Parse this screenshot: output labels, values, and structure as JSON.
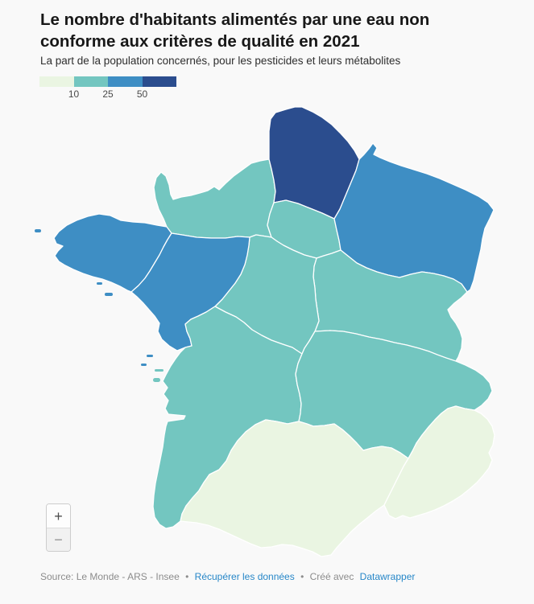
{
  "header": {
    "title": "Le nombre d'habitants alimentés par une eau non conforme aux critères de qualité en 2021",
    "subtitle": "La part de la population concernés, pour les pesticides et leurs métabolites"
  },
  "legend": {
    "ticks": [
      "10",
      "25",
      "50"
    ],
    "colors": [
      "#eaf5e2",
      "#73c6c0",
      "#3e8ec4",
      "#2b4d8e"
    ],
    "tick_color": "#4a4a4a"
  },
  "zoom_controls": {
    "zoom_in": "+",
    "zoom_out": "−"
  },
  "footer": {
    "source": "Source: Le Monde - ARS - Insee",
    "separator": "•",
    "data_link": "Récupérer les données",
    "created_with": "Créé avec",
    "tool_link": "Datawrapper",
    "link_color": "#2787c8",
    "text_color": "#8c8c8c"
  },
  "chart_data": {
    "type": "heatmap",
    "subtype": "choropleth",
    "geography": "France métropolitaine — régions administratives",
    "title": "Le nombre d'habitants alimentés par une eau non conforme aux critères de qualité en 2021",
    "subtitle": "La part de la population concernés, pour les pesticides et leurs métabolites",
    "legend_thresholds": [
      10,
      25,
      50
    ],
    "legend_colors": [
      "#eaf5e2",
      "#73c6c0",
      "#3e8ec4",
      "#2b4d8e"
    ],
    "classes": [
      "< 10",
      "10–25",
      "25–50",
      "> 50"
    ],
    "regions": [
      {
        "key": "hauts-de-france",
        "name": "Hauts-de-France",
        "class": "> 50",
        "bucket_index": 3
      },
      {
        "key": "grand-est",
        "name": "Grand Est",
        "class": "25–50",
        "bucket_index": 2
      },
      {
        "key": "bretagne",
        "name": "Bretagne",
        "class": "25–50",
        "bucket_index": 2
      },
      {
        "key": "pays-de-la-loire",
        "name": "Pays de la Loire",
        "class": "25–50",
        "bucket_index": 2
      },
      {
        "key": "normandie",
        "name": "Normandie",
        "class": "10–25",
        "bucket_index": 1
      },
      {
        "key": "ile-de-france",
        "name": "Île-de-France",
        "class": "10–25",
        "bucket_index": 1
      },
      {
        "key": "centre-val-de-loire",
        "name": "Centre-Val de Loire",
        "class": "10–25",
        "bucket_index": 1
      },
      {
        "key": "bourgogne-franche-comte",
        "name": "Bourgogne-Franche-Comté",
        "class": "10–25",
        "bucket_index": 1
      },
      {
        "key": "nouvelle-aquitaine",
        "name": "Nouvelle-Aquitaine",
        "class": "10–25",
        "bucket_index": 1
      },
      {
        "key": "auvergne-rhone-alpes",
        "name": "Auvergne-Rhône-Alpes",
        "class": "10–25",
        "bucket_index": 1
      },
      {
        "key": "occitanie",
        "name": "Occitanie",
        "class": "< 10",
        "bucket_index": 0
      },
      {
        "key": "provence-alpes-cote-d-azur",
        "name": "Provence-Alpes-Côte d'Azur",
        "class": "< 10",
        "bucket_index": 0
      }
    ]
  }
}
